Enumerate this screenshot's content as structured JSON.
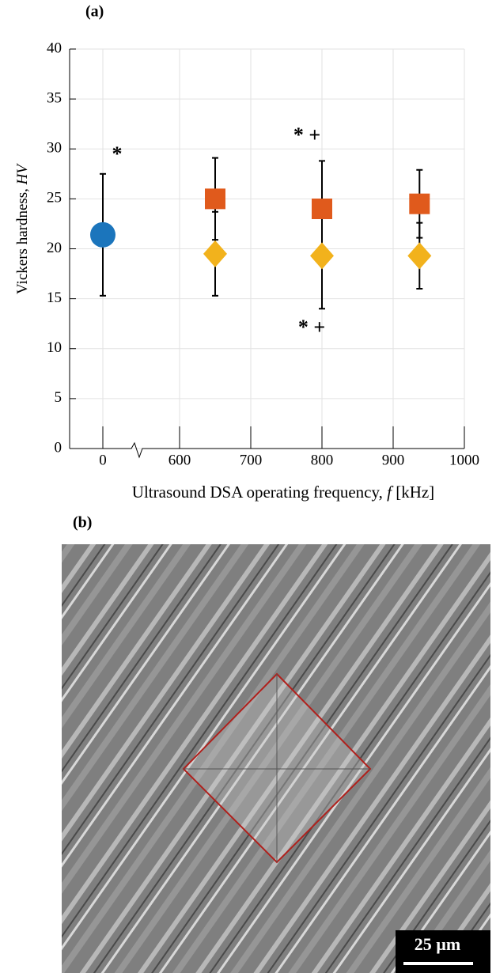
{
  "panel_a_label": "(a)",
  "panel_b_label": "(b)",
  "scale_bar_label": "25 µm",
  "chart_data": {
    "type": "scatter",
    "ylabel": {
      "text": "Vickers hardness,",
      "var": "HV"
    },
    "xlabel": {
      "text": "Ultrasound DSA operating frequency,",
      "var": "f",
      "unit": "[kHz]"
    },
    "ylim": [
      0,
      40
    ],
    "yticks": [
      0,
      5,
      10,
      15,
      20,
      25,
      30,
      35,
      40
    ],
    "xlim": [
      600,
      1000
    ],
    "xticks": [
      0,
      600,
      700,
      800,
      900,
      1000
    ],
    "axis_break": true,
    "grid": true,
    "series": [
      {
        "marker": "circle",
        "color": "#1b75bc",
        "x": [
          0
        ],
        "values": [
          21.4
        ],
        "errors": [
          6.1
        ]
      },
      {
        "marker": "square",
        "color": "#e05a1c",
        "x": [
          650,
          800,
          937
        ],
        "values": [
          25,
          24,
          24.5
        ],
        "errors": [
          4.1,
          4.8,
          3.4
        ]
      },
      {
        "marker": "diamond",
        "color": "#f2b21c",
        "x": [
          650,
          800,
          937
        ],
        "values": [
          19.5,
          19.3,
          19.3
        ],
        "errors": [
          4.2,
          5.3,
          3.3
        ]
      }
    ],
    "annotations": [
      "*",
      "* +",
      "* +"
    ]
  }
}
